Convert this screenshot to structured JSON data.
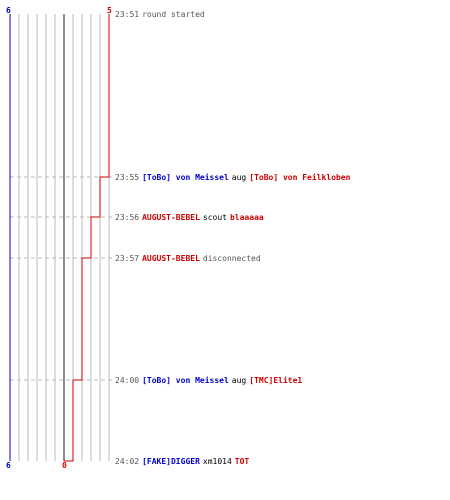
{
  "colors": {
    "team_blue": "#0000cc",
    "team_red": "#cc0000",
    "grid": "#bbbbbb",
    "dashed": "#bbbbbb",
    "text_grey": "#555555"
  },
  "scale": {
    "max": 6,
    "blue_top_label": "6",
    "red_top_label": "5",
    "blue_bottom_label": "6",
    "red_bottom_label": "0"
  },
  "red_steps": [
    5,
    4,
    3,
    2,
    1,
    0
  ],
  "events": [
    {
      "time": "23:51",
      "parts": [
        {
          "text": "round started",
          "color": "grey",
          "bold": false
        }
      ]
    },
    {
      "time": "23:55",
      "parts": [
        {
          "text": "[ToBo] von Meissel",
          "color": "blue"
        },
        {
          "text": "aug",
          "color": "black"
        },
        {
          "text": "[ToBo] von Feilkloben",
          "color": "red"
        }
      ]
    },
    {
      "time": "23:56",
      "parts": [
        {
          "text": "AUGUST-BEBEL",
          "color": "red"
        },
        {
          "text": "scout",
          "color": "black"
        },
        {
          "text": "blaaaaa",
          "color": "red"
        }
      ]
    },
    {
      "time": "23:57",
      "parts": [
        {
          "text": "AUGUST-BEBEL",
          "color": "red"
        },
        {
          "text": "disconnected",
          "color": "grey"
        }
      ]
    },
    {
      "time": "24:00",
      "parts": [
        {
          "text": "[ToBo] von Meissel",
          "color": "blue"
        },
        {
          "text": "aug",
          "color": "black"
        },
        {
          "text": "[TMC]Elite1",
          "color": "red"
        }
      ]
    },
    {
      "time": "24:02",
      "parts": [
        {
          "text": "[FAKE]DIGGER",
          "color": "blue"
        },
        {
          "text": "xm1014",
          "color": "black"
        },
        {
          "text": "TOT",
          "color": "red"
        }
      ]
    }
  ]
}
